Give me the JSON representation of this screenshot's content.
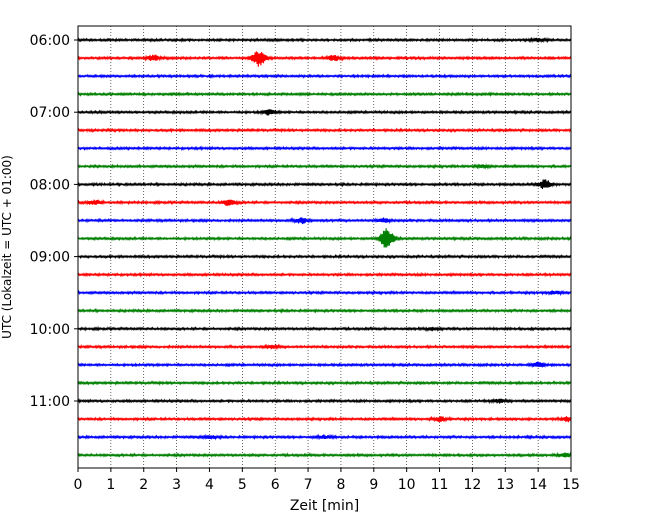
{
  "chart_data": {
    "type": "line",
    "title": "",
    "xlabel": "Zeit  [min]",
    "ylabel": "UTC (Lokalzeit = UTC + 01:00)",
    "xlim": [
      0,
      15
    ],
    "x_ticks": [
      0,
      1,
      2,
      3,
      4,
      5,
      6,
      7,
      8,
      9,
      10,
      11,
      12,
      13,
      14,
      15
    ],
    "x_tick_labels": [
      "0",
      "1",
      "2",
      "3",
      "4",
      "5",
      "6",
      "7",
      "8",
      "9",
      "10",
      "11",
      "12",
      "13",
      "14",
      "15"
    ],
    "y_tick_labels": [
      "06:00",
      "07:00",
      "08:00",
      "09:00",
      "10:00",
      "11:00"
    ],
    "y_tick_trace_index": [
      0,
      4,
      8,
      12,
      16,
      20
    ],
    "trace_start_time": "06:00",
    "trace_interval_minutes": 15,
    "color_cycle": [
      "#000000",
      "#ff0000",
      "#0000ff",
      "#008000"
    ],
    "grid": "vertical dotted at each minute",
    "traces": [
      {
        "start": "06:00",
        "color": "#000000",
        "events": [
          {
            "t": 14.0,
            "amp": 0.5
          }
        ]
      },
      {
        "start": "06:15",
        "color": "#ff0000",
        "events": [
          {
            "t": 2.3,
            "amp": 1.0
          },
          {
            "t": 5.5,
            "amp": 2.6
          },
          {
            "t": 7.8,
            "amp": 0.9
          }
        ]
      },
      {
        "start": "06:30",
        "color": "#0000ff",
        "events": []
      },
      {
        "start": "06:45",
        "color": "#008000",
        "events": []
      },
      {
        "start": "07:00",
        "color": "#000000",
        "events": [
          {
            "t": 5.8,
            "amp": 0.9
          }
        ]
      },
      {
        "start": "07:15",
        "color": "#ff0000",
        "events": []
      },
      {
        "start": "07:30",
        "color": "#0000ff",
        "events": []
      },
      {
        "start": "07:45",
        "color": "#008000",
        "events": [
          {
            "t": 12.3,
            "amp": 0.5
          }
        ]
      },
      {
        "start": "08:00",
        "color": "#000000",
        "events": [
          {
            "t": 14.2,
            "amp": 1.5
          }
        ]
      },
      {
        "start": "08:15",
        "color": "#ff0000",
        "events": [
          {
            "t": 0.5,
            "amp": 0.8
          },
          {
            "t": 4.6,
            "amp": 1.0
          }
        ]
      },
      {
        "start": "08:30",
        "color": "#0000ff",
        "events": [
          {
            "t": 6.8,
            "amp": 0.9
          },
          {
            "t": 9.3,
            "amp": 0.6
          }
        ]
      },
      {
        "start": "08:45",
        "color": "#008000",
        "events": [
          {
            "t": 9.4,
            "amp": 3.5
          }
        ]
      },
      {
        "start": "09:00",
        "color": "#000000",
        "events": []
      },
      {
        "start": "09:15",
        "color": "#ff0000",
        "events": []
      },
      {
        "start": "09:30",
        "color": "#0000ff",
        "events": [
          {
            "t": 14.5,
            "amp": 0.5
          }
        ]
      },
      {
        "start": "09:45",
        "color": "#008000",
        "events": []
      },
      {
        "start": "10:00",
        "color": "#000000",
        "events": [
          {
            "t": 10.8,
            "amp": 0.5
          }
        ]
      },
      {
        "start": "10:15",
        "color": "#ff0000",
        "events": [
          {
            "t": 5.9,
            "amp": 0.5
          }
        ]
      },
      {
        "start": "10:30",
        "color": "#0000ff",
        "events": [
          {
            "t": 14.0,
            "amp": 0.8
          }
        ]
      },
      {
        "start": "10:45",
        "color": "#008000",
        "events": []
      },
      {
        "start": "11:00",
        "color": "#000000",
        "events": [
          {
            "t": 12.8,
            "amp": 0.6
          }
        ]
      },
      {
        "start": "11:15",
        "color": "#ff0000",
        "events": [
          {
            "t": 11.0,
            "amp": 0.8
          },
          {
            "t": 14.9,
            "amp": 0.7
          }
        ]
      },
      {
        "start": "11:30",
        "color": "#0000ff",
        "events": [
          {
            "t": 4.0,
            "amp": 0.5
          },
          {
            "t": 7.5,
            "amp": 0.5
          }
        ]
      },
      {
        "start": "11:45",
        "color": "#008000",
        "events": [
          {
            "t": 14.8,
            "amp": 0.6
          }
        ]
      }
    ]
  }
}
